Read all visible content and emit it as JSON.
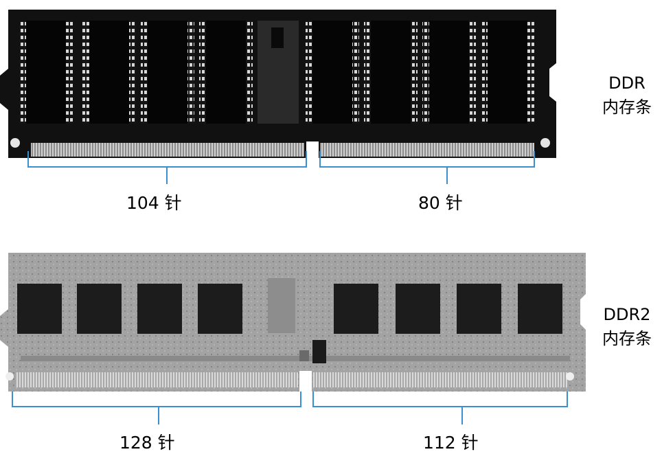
{
  "modules": [
    {
      "type_label": "DDR",
      "subtitle": "内存条",
      "pins_left": "104 针",
      "pins_right": "80 针"
    },
    {
      "type_label": "DDR2",
      "subtitle": "内存条",
      "pins_left": "128 针",
      "pins_right": "112 针"
    }
  ],
  "colors": {
    "bracket": "#3a8fd0",
    "ddr_pcb": "#101010",
    "ddr2_pcb": "#9a9a9a",
    "chip": "#1c1c1c",
    "contacts": "#b8b8b8"
  }
}
